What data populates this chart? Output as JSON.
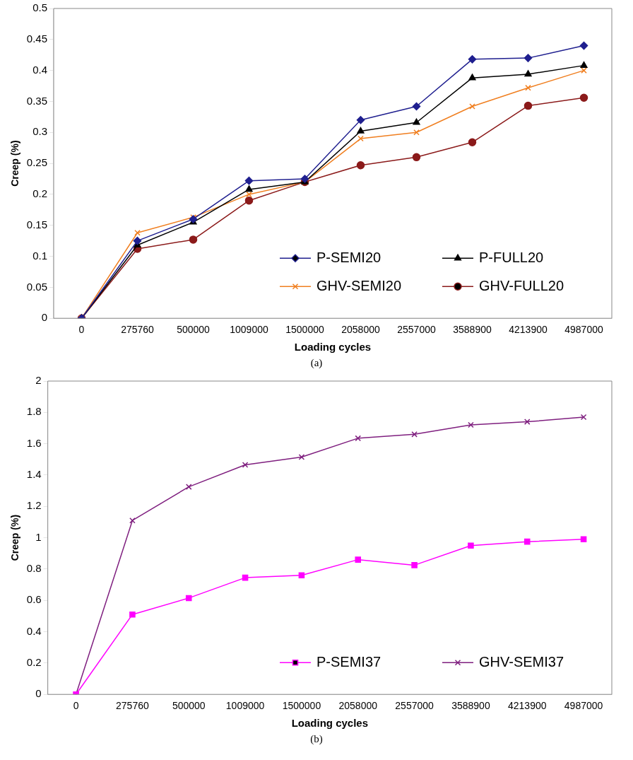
{
  "chart_data": [
    {
      "type": "line",
      "xlabel": "Loading cycles",
      "ylabel": "Creep (%)",
      "categories": [
        "0",
        "275760",
        "500000",
        "1009000",
        "1500000",
        "2058000",
        "2557000",
        "3588900",
        "4213900",
        "4987000"
      ],
      "ylim": [
        0,
        0.5
      ],
      "yticks": [
        0,
        0.05,
        0.1,
        0.15,
        0.2,
        0.25,
        0.3,
        0.35,
        0.4,
        0.45,
        0.5
      ],
      "grid": false,
      "legend": "bottom right",
      "annotations": [
        "(a)"
      ],
      "series": [
        {
          "name": "P-SEMI20",
          "color": "#1f1f8f",
          "marker": "diamond",
          "values": [
            0,
            0.125,
            0.16,
            0.222,
            0.225,
            0.32,
            0.342,
            0.418,
            0.42,
            0.44
          ]
        },
        {
          "name": "P-FULL20",
          "color": "#000000",
          "marker": "triangle",
          "values": [
            0,
            0.118,
            0.155,
            0.208,
            0.22,
            0.302,
            0.316,
            0.388,
            0.394,
            0.408
          ]
        },
        {
          "name": "GHV-SEMI20",
          "color": "#f07f20",
          "marker": "cross",
          "values": [
            0,
            0.138,
            0.163,
            0.2,
            0.22,
            0.29,
            0.3,
            0.342,
            0.372,
            0.4
          ]
        },
        {
          "name": "GHV-FULL20",
          "color": "#8b1a1a",
          "marker": "circle",
          "values": [
            0,
            0.112,
            0.127,
            0.19,
            0.22,
            0.247,
            0.26,
            0.284,
            0.343,
            0.356
          ]
        }
      ]
    },
    {
      "type": "line",
      "xlabel": "Loading cycles",
      "ylabel": "Creep (%)",
      "categories": [
        "0",
        "275760",
        "500000",
        "1009000",
        "1500000",
        "2058000",
        "2557000",
        "3588900",
        "4213900",
        "4987000"
      ],
      "ylim": [
        0,
        2
      ],
      "yticks": [
        0,
        0.2,
        0.4,
        0.6,
        0.8,
        1,
        1.2,
        1.4,
        1.6,
        1.8,
        2
      ],
      "grid": false,
      "legend": "bottom right",
      "annotations": [
        "(b)"
      ],
      "series": [
        {
          "name": "P-SEMI37",
          "color": "#ff00ff",
          "marker": "square",
          "values": [
            0,
            0.51,
            0.615,
            0.745,
            0.76,
            0.86,
            0.825,
            0.95,
            0.975,
            0.99
          ]
        },
        {
          "name": "GHV-SEMI37",
          "color": "#7f1f7f",
          "marker": "cross",
          "values": [
            0,
            1.11,
            1.325,
            1.465,
            1.515,
            1.635,
            1.66,
            1.72,
            1.74,
            1.77
          ]
        }
      ]
    }
  ]
}
